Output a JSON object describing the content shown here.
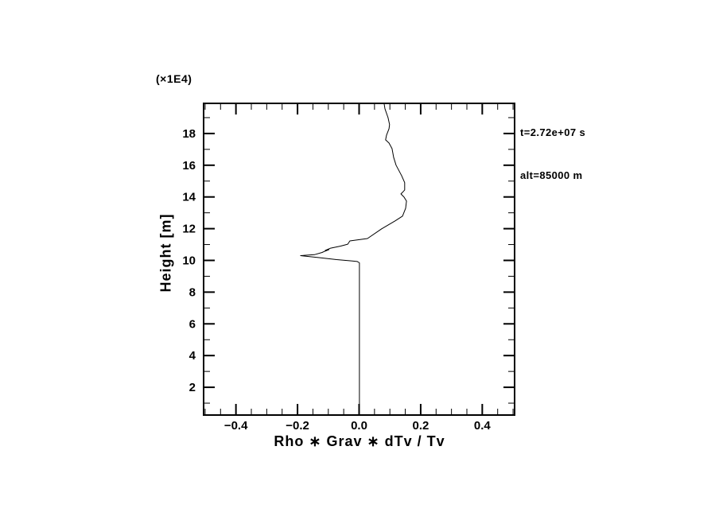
{
  "figure": {
    "background_color": "#ffffff",
    "line_color": "#000000"
  },
  "chart_data": {
    "type": "line",
    "title": "",
    "xlabel": "Rho ∗ Grav ∗ dTv / Tv",
    "ylabel": "Height [m]",
    "y_multiplier_label": "(×1E4)",
    "annotations": [
      "t=2.72e+07 s",
      "alt=85000 m"
    ],
    "xlim": [
      -0.505,
      0.505
    ],
    "ylim": [
      0.25,
      19.9
    ],
    "grid": false,
    "legend": null,
    "x_major_ticks": [
      -0.4,
      -0.2,
      0.0,
      0.2,
      0.4
    ],
    "x_major_tick_labels": [
      "−0.4",
      "−0.2",
      "0.0",
      "0.2",
      "0.4"
    ],
    "x_minor_tick_step": 0.05,
    "y_major_ticks": [
      2,
      4,
      6,
      8,
      10,
      12,
      14,
      16,
      18
    ],
    "y_major_tick_labels": [
      "2",
      "4",
      "6",
      "8",
      "10",
      "12",
      "14",
      "16",
      "18"
    ],
    "y_minor_tick_step": 1,
    "series": [
      {
        "name": "rho-grav-dTv-over-Tv-profile",
        "color": "#000000",
        "points": [
          [
            0.001,
            0.25
          ],
          [
            0.001,
            9.85
          ],
          [
            -0.006,
            9.93
          ],
          [
            -0.025,
            9.97
          ],
          [
            -0.073,
            10.05
          ],
          [
            -0.133,
            10.18
          ],
          [
            -0.19,
            10.3
          ],
          [
            -0.145,
            10.36
          ],
          [
            -0.12,
            10.5
          ],
          [
            -0.112,
            10.57
          ],
          [
            -0.098,
            10.68
          ],
          [
            -0.11,
            10.63
          ],
          [
            -0.094,
            10.76
          ],
          [
            -0.06,
            10.9
          ],
          [
            -0.037,
            11.02
          ],
          [
            -0.03,
            11.23
          ],
          [
            0.027,
            11.38
          ],
          [
            0.073,
            11.99
          ],
          [
            0.117,
            12.49
          ],
          [
            0.141,
            12.79
          ],
          [
            0.151,
            13.29
          ],
          [
            0.154,
            13.74
          ],
          [
            0.146,
            13.99
          ],
          [
            0.136,
            14.19
          ],
          [
            0.141,
            14.29
          ],
          [
            0.148,
            14.44
          ],
          [
            0.148,
            14.9
          ],
          [
            0.138,
            15.35
          ],
          [
            0.12,
            16.0
          ],
          [
            0.112,
            16.5
          ],
          [
            0.107,
            17.05
          ],
          [
            0.097,
            17.4
          ],
          [
            0.086,
            17.6
          ],
          [
            0.089,
            17.9
          ],
          [
            0.097,
            18.3
          ],
          [
            0.099,
            18.56
          ],
          [
            0.094,
            19.0
          ],
          [
            0.084,
            19.56
          ],
          [
            0.081,
            19.9
          ]
        ]
      }
    ]
  }
}
